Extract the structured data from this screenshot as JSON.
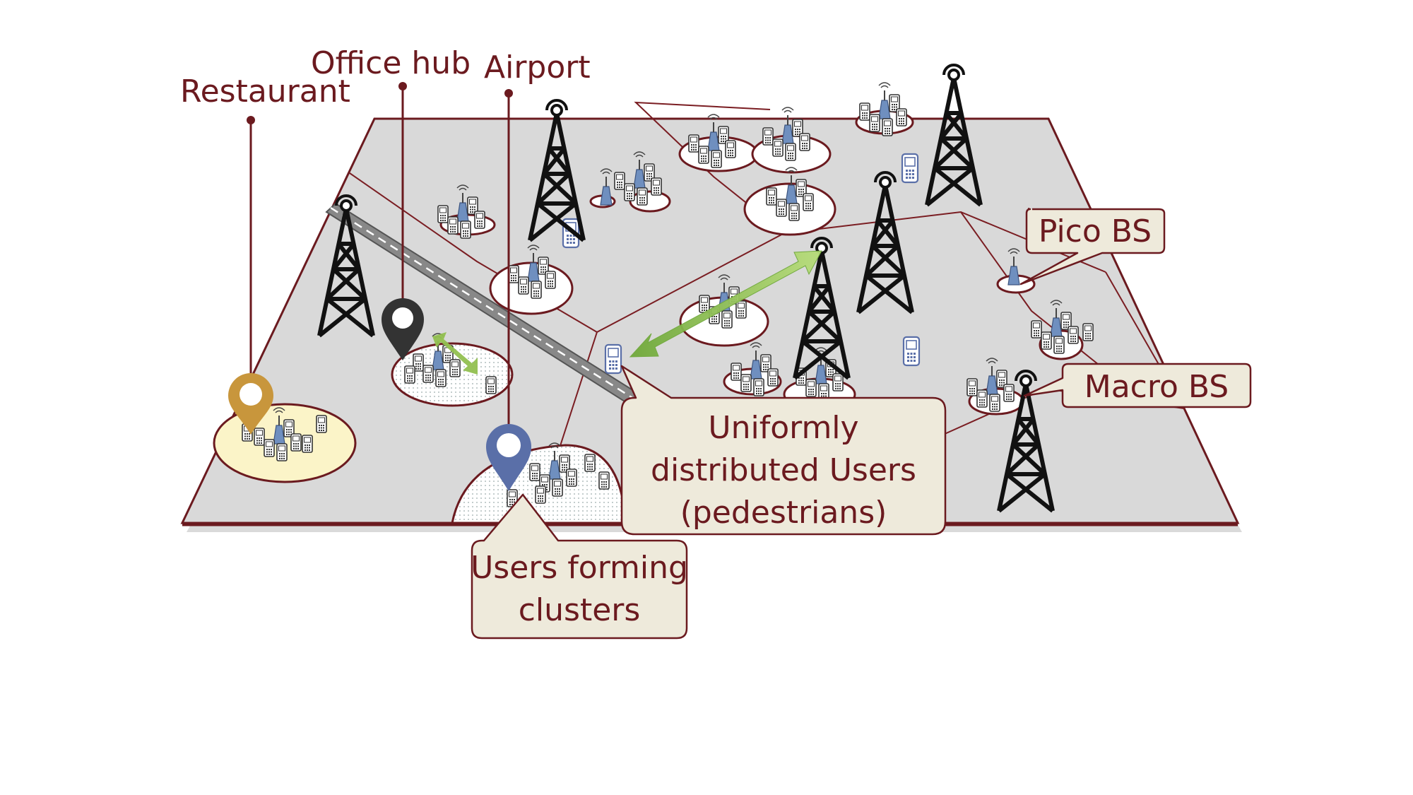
{
  "labels": {
    "restaurant": "Restaurant",
    "office_hub": "Office hub",
    "airport": "Airport"
  },
  "callouts": {
    "pico_bs": "Pico BS",
    "macro_bs": "Macro BS",
    "uniform_users": [
      "Uniformly",
      "distributed Users",
      "(pedestrians)"
    ],
    "clusters": [
      "Users forming",
      "clusters"
    ]
  },
  "colors": {
    "accent": "#6b1a1f",
    "ground": "#d9d9d9",
    "callout_fill": "#eeeadb",
    "restaurant_pin": "#c8963c",
    "office_pin": "#333333",
    "airport_pin": "#5a6fa8",
    "pico_bs": "#6f8fbf",
    "link_arrow": "#92c050"
  },
  "icons": [
    "map-pin-icon",
    "macro-tower-icon",
    "pico-bs-icon",
    "phone-icon",
    "double-arrow-icon"
  ]
}
